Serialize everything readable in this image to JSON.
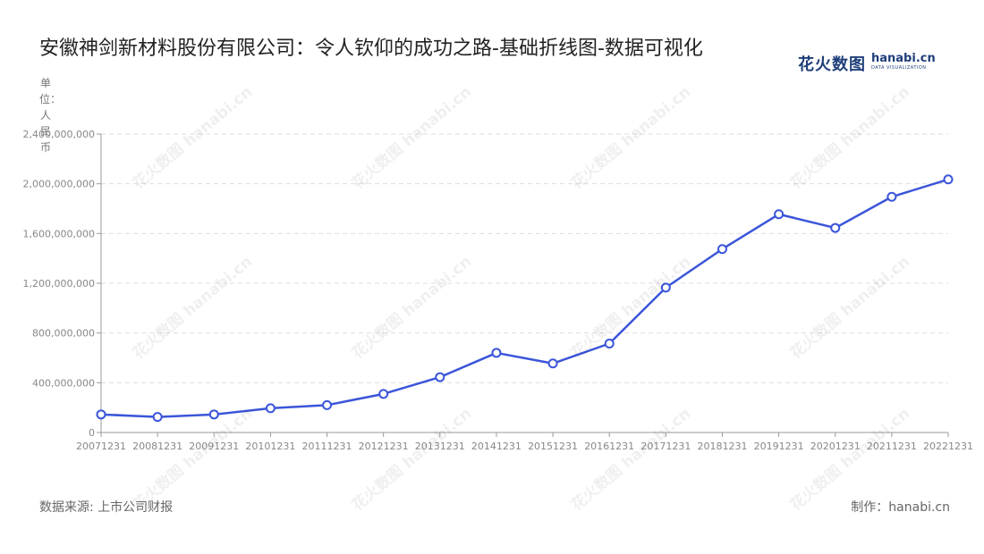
{
  "header": {
    "title": "安徽神剑新材料股份有限公司：令人钦仰的成功之路-基础折线图-数据可视化",
    "brand_cn": "花火数图",
    "brand_en": "hanabi.cn",
    "brand_sub": "DATA VISUALIZATION"
  },
  "footer": {
    "source": "数据来源: 上市公司财报",
    "credit": "制作：hanabi.cn"
  },
  "watermark": "花火数图 hanabi.cn",
  "colors": {
    "line": "#3b55d9",
    "grid": "#dddddd",
    "axis": "#999999"
  },
  "chart_data": {
    "type": "line",
    "title": "安徽神剑新材料股份有限公司：令人钦仰的成功之路-基础折线图-数据可视化",
    "ylabel": "单位：人民币",
    "xlabel": "",
    "categories": [
      "20071231",
      "20081231",
      "20091231",
      "20101231",
      "20111231",
      "20121231",
      "20131231",
      "20141231",
      "20151231",
      "20161231",
      "20171231",
      "20181231",
      "20191231",
      "20201231",
      "20211231",
      "20221231"
    ],
    "values": [
      145000000,
      125000000,
      145000000,
      195000000,
      220000000,
      310000000,
      445000000,
      640000000,
      555000000,
      715000000,
      1165000000,
      1475000000,
      1755000000,
      1645000000,
      1895000000,
      2035000000
    ],
    "ylim": [
      0,
      2400000000
    ],
    "yticks": [
      0,
      400000000,
      800000000,
      1200000000,
      1600000000,
      2000000000,
      2400000000
    ],
    "ytick_labels": [
      "0",
      "400,000,000",
      "800,000,000",
      "1,200,000,000",
      "1,600,000,000",
      "2,000,000,000",
      "2,400,000,000"
    ],
    "grid": true,
    "legend": "none"
  }
}
